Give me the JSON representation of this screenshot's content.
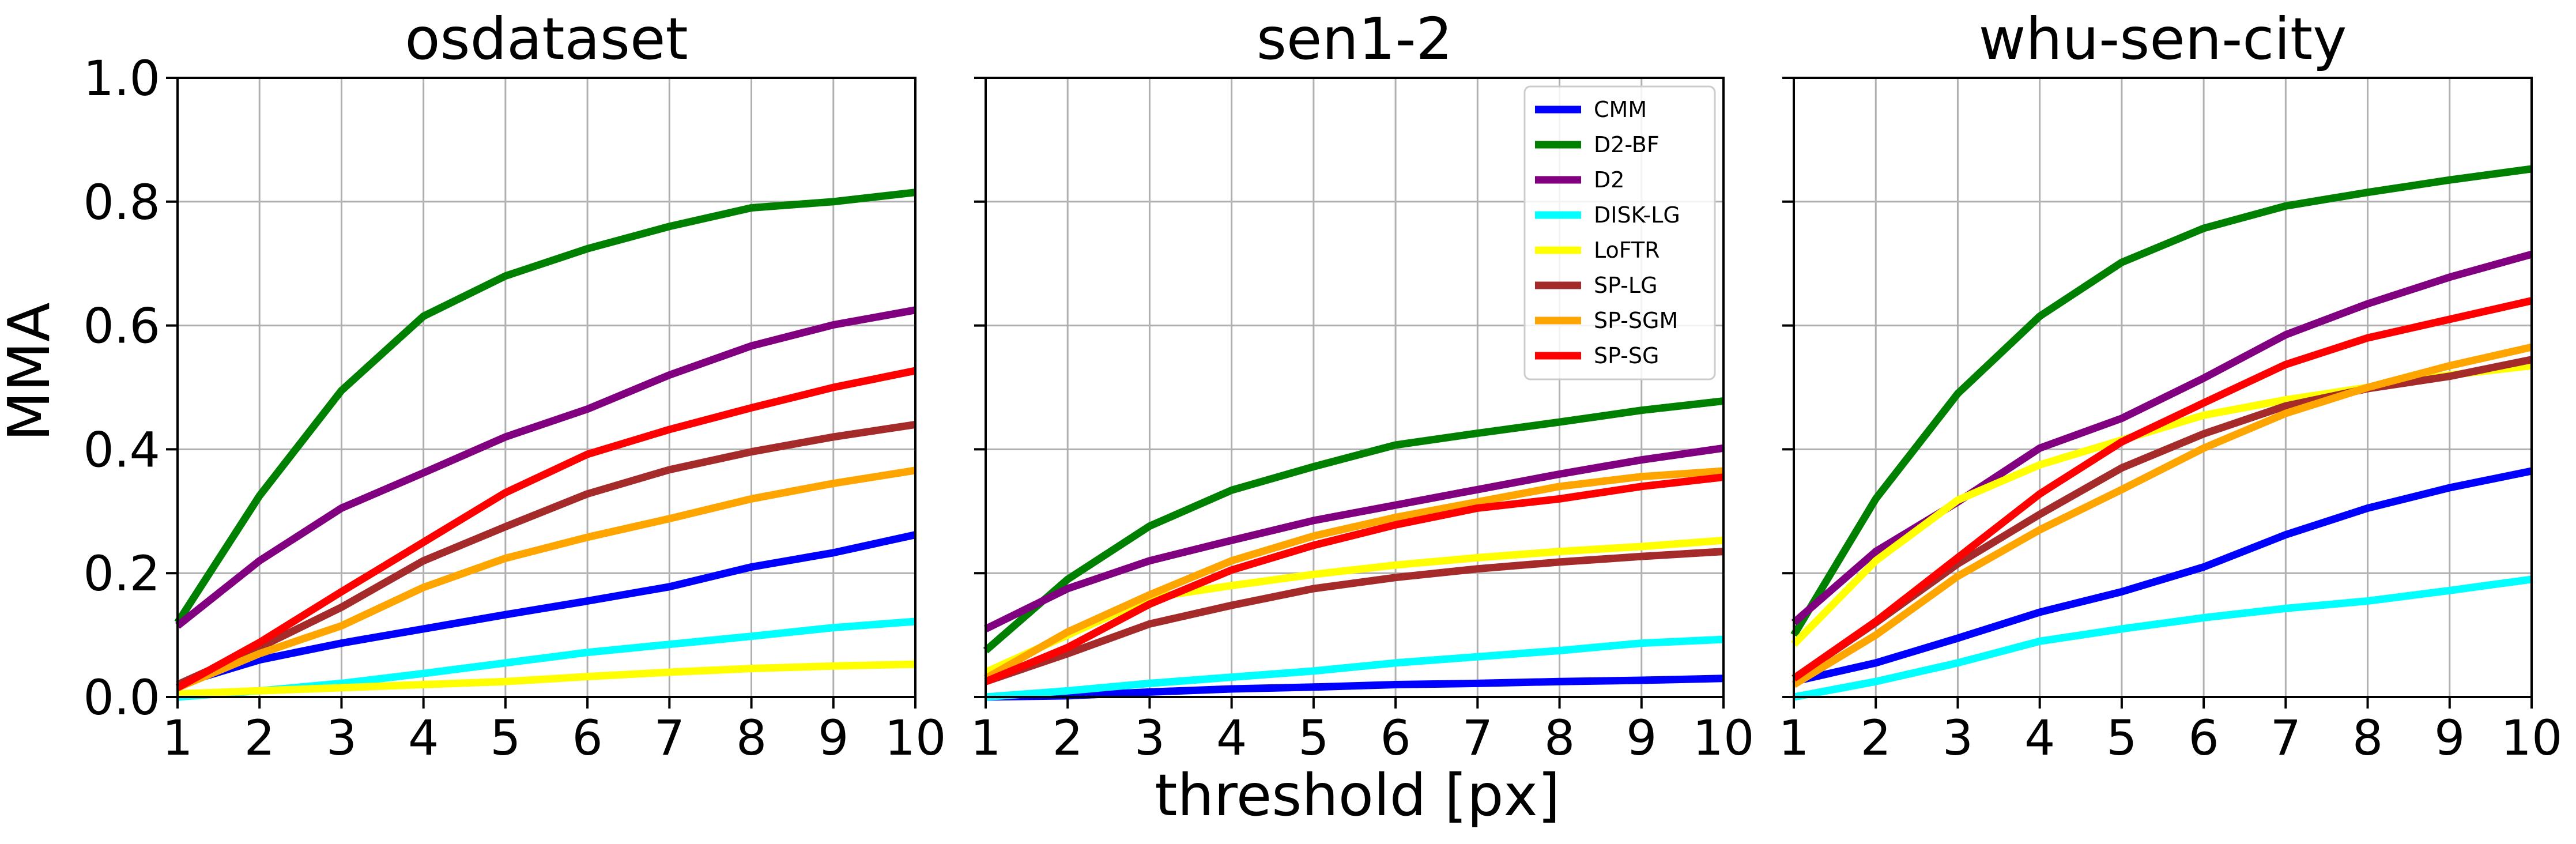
{
  "figure": {
    "ylabel": "MMA",
    "xlabel": "threshold [px]"
  },
  "chart_data": [
    {
      "type": "line",
      "title": "osdataset",
      "xlabel": "",
      "ylabel": "MMA",
      "xlim": [
        1,
        10
      ],
      "ylim": [
        0,
        1
      ],
      "xticks": [
        "1",
        "2",
        "3",
        "4",
        "5",
        "6",
        "7",
        "8",
        "9",
        "10"
      ],
      "yticks": [
        "0.0",
        "0.2",
        "0.4",
        "0.6",
        "0.8",
        "1.0"
      ],
      "grid": true,
      "x": [
        1,
        2,
        3,
        4,
        5,
        6,
        7,
        8,
        9,
        10
      ],
      "series": [
        {
          "name": "CMM",
          "color": "#0000ff",
          "values": [
            0.02,
            0.06,
            0.087,
            0.11,
            0.133,
            0.155,
            0.178,
            0.21,
            0.233,
            0.262
          ]
        },
        {
          "name": "D2-BF",
          "color": "#008000",
          "values": [
            0.12,
            0.325,
            0.495,
            0.615,
            0.68,
            0.724,
            0.76,
            0.79,
            0.8,
            0.815
          ]
        },
        {
          "name": "D2",
          "color": "#800080",
          "values": [
            0.115,
            0.22,
            0.305,
            0.362,
            0.42,
            0.465,
            0.52,
            0.567,
            0.601,
            0.625
          ]
        },
        {
          "name": "DISK-LG",
          "color": "#00ffff",
          "values": [
            0.0,
            0.01,
            0.022,
            0.038,
            0.055,
            0.072,
            0.085,
            0.098,
            0.112,
            0.122
          ]
        },
        {
          "name": "LoFTR",
          "color": "#ffff00",
          "values": [
            0.005,
            0.01,
            0.015,
            0.02,
            0.025,
            0.033,
            0.04,
            0.046,
            0.05,
            0.053
          ]
        },
        {
          "name": "SP-LG",
          "color": "#a52a2a",
          "values": [
            0.02,
            0.08,
            0.145,
            0.22,
            0.275,
            0.328,
            0.367,
            0.396,
            0.42,
            0.44
          ]
        },
        {
          "name": "SP-SGM",
          "color": "#ffa500",
          "values": [
            0.015,
            0.07,
            0.115,
            0.177,
            0.224,
            0.258,
            0.288,
            0.32,
            0.345,
            0.366
          ]
        },
        {
          "name": "SP-SG",
          "color": "#ff0000",
          "values": [
            0.015,
            0.088,
            0.17,
            0.25,
            0.33,
            0.392,
            0.432,
            0.467,
            0.5,
            0.527
          ]
        }
      ]
    },
    {
      "type": "line",
      "title": "sen1-2",
      "xlabel": "threshold [px]",
      "ylabel": "",
      "xlim": [
        1,
        10
      ],
      "ylim": [
        0,
        1
      ],
      "xticks": [
        "1",
        "2",
        "3",
        "4",
        "5",
        "6",
        "7",
        "8",
        "9",
        "10"
      ],
      "yticks": [],
      "grid": true,
      "legend": "top-right",
      "x": [
        1,
        2,
        3,
        4,
        5,
        6,
        7,
        8,
        9,
        10
      ],
      "series": [
        {
          "name": "CMM",
          "color": "#0000ff",
          "values": [
            0.0,
            0.002,
            0.008,
            0.013,
            0.016,
            0.02,
            0.022,
            0.025,
            0.027,
            0.03
          ]
        },
        {
          "name": "D2-BF",
          "color": "#008000",
          "values": [
            0.075,
            0.19,
            0.276,
            0.334,
            0.372,
            0.407,
            0.426,
            0.444,
            0.463,
            0.478
          ]
        },
        {
          "name": "D2",
          "color": "#800080",
          "values": [
            0.11,
            0.175,
            0.22,
            0.253,
            0.285,
            0.31,
            0.335,
            0.36,
            0.383,
            0.402
          ]
        },
        {
          "name": "DISK-LG",
          "color": "#00ffff",
          "values": [
            0.0,
            0.01,
            0.022,
            0.032,
            0.042,
            0.055,
            0.065,
            0.075,
            0.087,
            0.093
          ]
        },
        {
          "name": "LoFTR",
          "color": "#ffff00",
          "values": [
            0.04,
            0.1,
            0.16,
            0.18,
            0.198,
            0.213,
            0.225,
            0.235,
            0.243,
            0.253
          ]
        },
        {
          "name": "SP-LG",
          "color": "#a52a2a",
          "values": [
            0.025,
            0.07,
            0.118,
            0.148,
            0.175,
            0.193,
            0.207,
            0.218,
            0.227,
            0.235
          ]
        },
        {
          "name": "SP-SGM",
          "color": "#ffa500",
          "values": [
            0.03,
            0.105,
            0.165,
            0.22,
            0.26,
            0.29,
            0.315,
            0.34,
            0.356,
            0.365
          ]
        },
        {
          "name": "SP-SG",
          "color": "#ff0000",
          "values": [
            0.025,
            0.08,
            0.15,
            0.205,
            0.245,
            0.278,
            0.305,
            0.32,
            0.34,
            0.355
          ]
        }
      ]
    },
    {
      "type": "line",
      "title": "whu-sen-city",
      "xlabel": "",
      "ylabel": "",
      "xlim": [
        1,
        10
      ],
      "ylim": [
        0,
        1
      ],
      "xticks": [
        "1",
        "2",
        "3",
        "4",
        "5",
        "6",
        "7",
        "8",
        "9",
        "10"
      ],
      "yticks": [],
      "grid": true,
      "x": [
        1,
        2,
        3,
        4,
        5,
        6,
        7,
        8,
        9,
        10
      ],
      "series": [
        {
          "name": "CMM",
          "color": "#0000ff",
          "values": [
            0.025,
            0.055,
            0.095,
            0.137,
            0.17,
            0.21,
            0.262,
            0.305,
            0.338,
            0.365
          ]
        },
        {
          "name": "D2-BF",
          "color": "#008000",
          "values": [
            0.1,
            0.32,
            0.49,
            0.615,
            0.702,
            0.757,
            0.793,
            0.815,
            0.835,
            0.853
          ]
        },
        {
          "name": "D2",
          "color": "#800080",
          "values": [
            0.12,
            0.235,
            0.315,
            0.402,
            0.45,
            0.515,
            0.585,
            0.635,
            0.678,
            0.715
          ]
        },
        {
          "name": "DISK-LG",
          "color": "#00ffff",
          "values": [
            0.0,
            0.025,
            0.055,
            0.09,
            0.11,
            0.128,
            0.143,
            0.155,
            0.172,
            0.19
          ]
        },
        {
          "name": "LoFTR",
          "color": "#ffff00",
          "values": [
            0.085,
            0.22,
            0.318,
            0.375,
            0.415,
            0.455,
            0.48,
            0.5,
            0.52,
            0.535
          ]
        },
        {
          "name": "SP-LG",
          "color": "#a52a2a",
          "values": [
            0.03,
            0.12,
            0.215,
            0.295,
            0.37,
            0.425,
            0.47,
            0.498,
            0.518,
            0.545
          ]
        },
        {
          "name": "SP-SGM",
          "color": "#ffa500",
          "values": [
            0.02,
            0.1,
            0.195,
            0.27,
            0.335,
            0.402,
            0.458,
            0.5,
            0.535,
            0.565
          ]
        },
        {
          "name": "SP-SG",
          "color": "#ff0000",
          "values": [
            0.03,
            0.122,
            0.225,
            0.328,
            0.412,
            0.475,
            0.537,
            0.58,
            0.61,
            0.64
          ]
        }
      ]
    }
  ]
}
